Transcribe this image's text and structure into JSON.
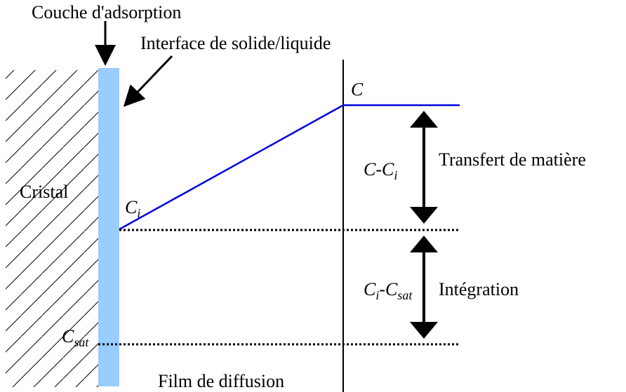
{
  "title": "Couche d'adsorption",
  "interface_label": "Interface de solide/liquide",
  "crystal_label": "Cristal",
  "film_label": "Film de diffusion",
  "mass_transfer_label": "Transfert de matière",
  "integration_label": "Intégration",
  "concentration_labels": {
    "c": [
      {
        "text": "C"
      }
    ],
    "ci": [
      {
        "text": "C"
      },
      {
        "text": "i",
        "sub": true
      }
    ],
    "csat": [
      {
        "text": "C"
      },
      {
        "text": "sat",
        "sub": true
      }
    ],
    "c_minus_ci": [
      {
        "text": "C"
      },
      {
        "text": "-"
      },
      {
        "text": "C"
      },
      {
        "text": "i",
        "sub": true
      }
    ],
    "ci_minus_csat": [
      {
        "text": "C"
      },
      {
        "text": "i",
        "sub": true
      },
      {
        "text": "-"
      },
      {
        "text": "C"
      },
      {
        "text": "sat",
        "sub": true
      }
    ]
  }
}
